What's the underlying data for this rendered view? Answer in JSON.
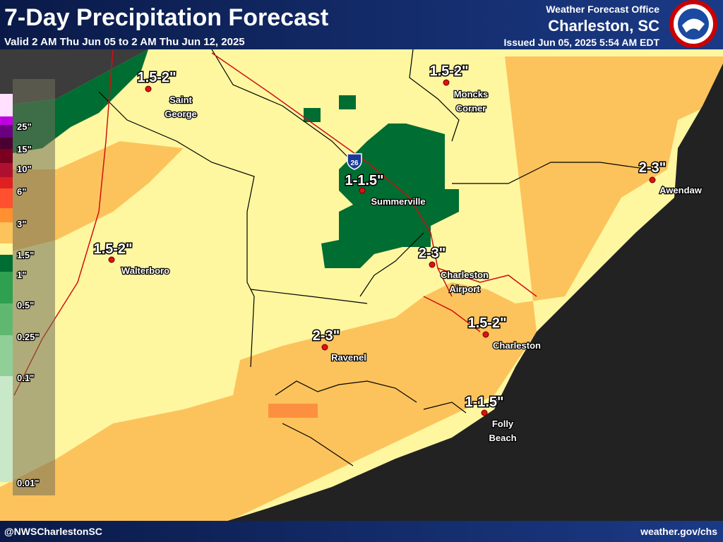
{
  "header": {
    "title": "7-Day Precipitation Forecast",
    "valid": "Valid 2 AM Thu Jun 05 to 2 AM Thu Jun 12, 2025",
    "office_label": "Weather Forecast Office",
    "office": "Charleston, SC",
    "issued": "Issued Jun 05, 2025 5:54 AM EDT"
  },
  "legend": {
    "labels": [
      "25\"",
      "15\"",
      "10\"",
      "6\"",
      "3\"",
      "1.5\"",
      "1\"",
      "0.5\"",
      "0.25\"",
      "0.1\"",
      "0.01\""
    ]
  },
  "highway": "26",
  "locations": [
    {
      "name": [
        "Saint",
        "George"
      ],
      "amount": "1.5-2\""
    },
    {
      "name": [
        "Moncks",
        "Corner"
      ],
      "amount": "1.5-2\""
    },
    {
      "name": [
        "Summerville"
      ],
      "amount": "1-1.5\""
    },
    {
      "name": [
        "Awendaw"
      ],
      "amount": "2-3\""
    },
    {
      "name": [
        "Walterboro"
      ],
      "amount": "1.5-2\""
    },
    {
      "name": [
        "Charleston",
        "Airport"
      ],
      "amount": "2-3\""
    },
    {
      "name": [
        "Charleston"
      ],
      "amount": "1.5-2\""
    },
    {
      "name": [
        "Ravenel"
      ],
      "amount": "2-3\""
    },
    {
      "name": [
        "Folly",
        "Beach"
      ],
      "amount": "1-1.5\""
    }
  ],
  "footer": {
    "left": "@NWSCharlestonSC",
    "right": "weather.gov/chs"
  }
}
